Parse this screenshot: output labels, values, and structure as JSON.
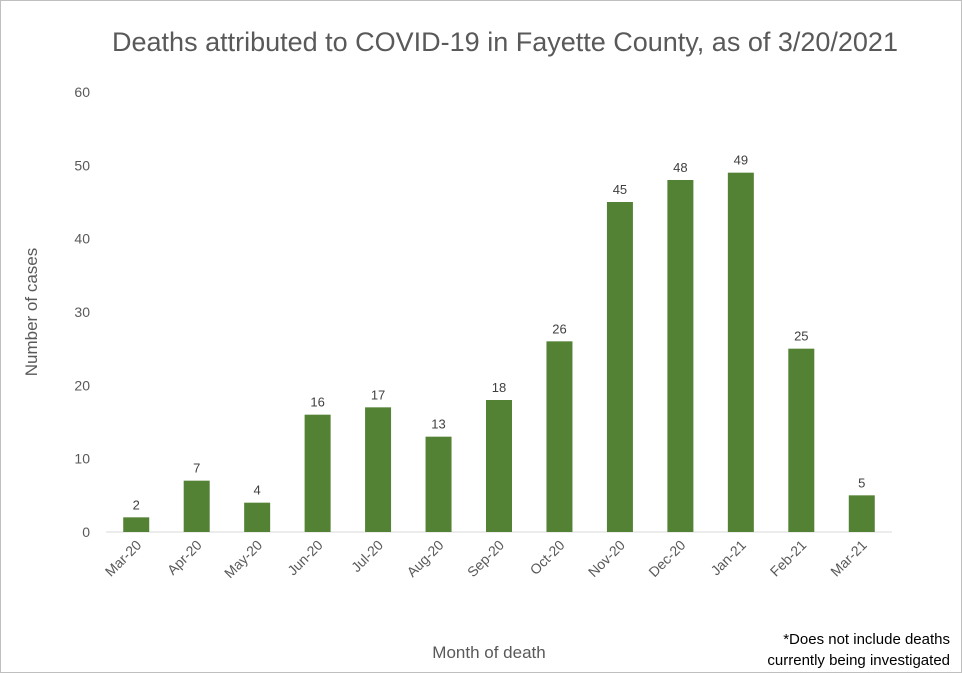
{
  "chart_data": {
    "type": "bar",
    "title": "Deaths attributed to COVID-19 in Fayette County, as of 3/20/2021",
    "xlabel": "Month of death",
    "ylabel": "Number of cases",
    "categories": [
      "Mar-20",
      "Apr-20",
      "May-20",
      "Jun-20",
      "Jul-20",
      "Aug-20",
      "Sep-20",
      "Oct-20",
      "Nov-20",
      "Dec-20",
      "Jan-21",
      "Feb-21",
      "Mar-21"
    ],
    "values": [
      2,
      7,
      4,
      16,
      17,
      13,
      18,
      26,
      45,
      48,
      49,
      25,
      5
    ],
    "ylim": [
      0,
      60
    ],
    "yticks": [
      0,
      10,
      20,
      30,
      40,
      50,
      60
    ],
    "bar_color": "#548235",
    "grid": false,
    "legend": "none"
  },
  "note_lines": [
    "*Does not include deaths",
    "currently being investigated"
  ]
}
